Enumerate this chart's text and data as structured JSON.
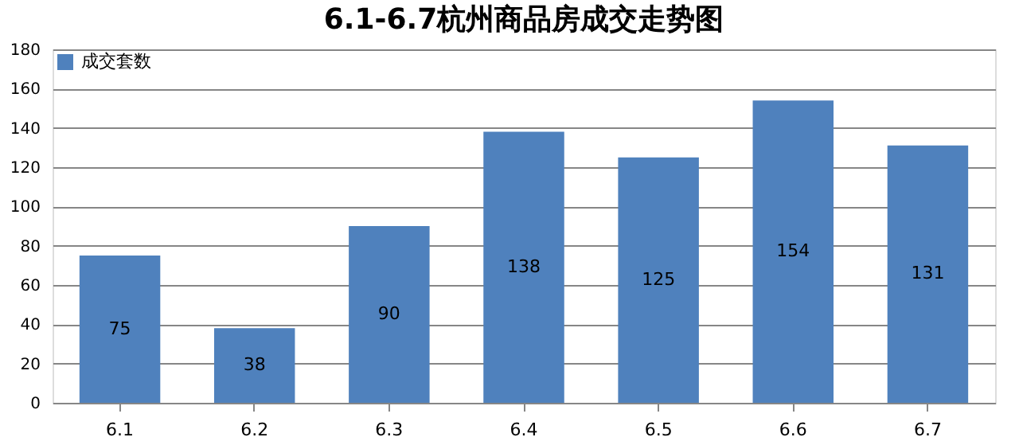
{
  "chart_data": {
    "type": "bar",
    "title": "6.1-6.7杭州商品房成交走势图",
    "categories": [
      "6.1",
      "6.2",
      "6.3",
      "6.4",
      "6.5",
      "6.6",
      "6.7"
    ],
    "series": [
      {
        "name": "成交套数",
        "color": "#4f81bd",
        "values": [
          75,
          38,
          90,
          138,
          125,
          154,
          131
        ]
      }
    ],
    "ylim": [
      0,
      180
    ],
    "yticks": [
      0,
      20,
      40,
      60,
      80,
      100,
      120,
      140,
      160,
      180
    ],
    "grid": "y",
    "legend": "top left",
    "data_labels": true
  }
}
